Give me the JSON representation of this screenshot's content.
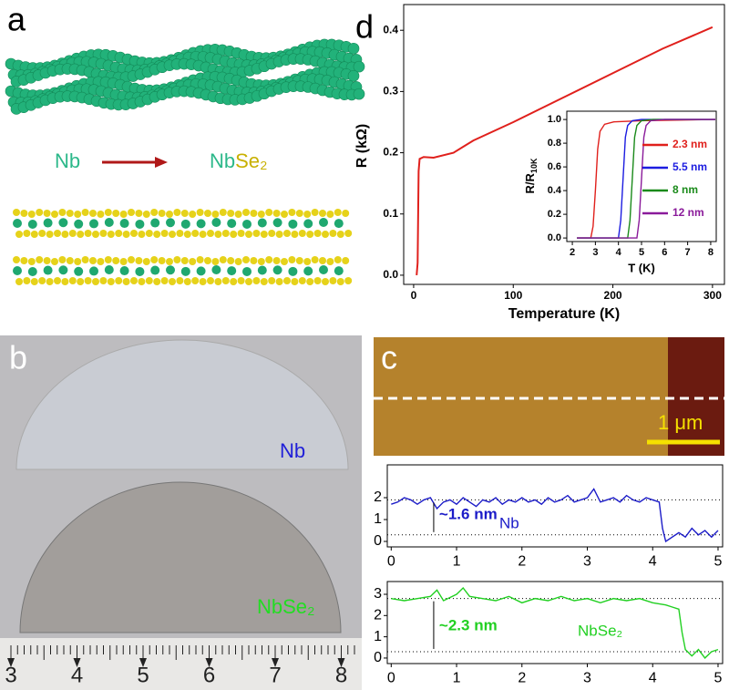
{
  "panel_labels": [
    "a",
    "b",
    "c",
    "d"
  ],
  "panel_a": {
    "from": "Nb",
    "to_metal": "Nb",
    "to_chalcogen": "Se₂"
  },
  "panel_b": {
    "label_top": "Nb",
    "label_bottom": "NbSe₂",
    "ruler": [
      "3",
      "4",
      "5",
      "6",
      "7",
      "8"
    ]
  },
  "panel_c": {
    "scale_bar": "1 μm"
  },
  "chart_data": [
    {
      "type": "line",
      "x_label": "Temperature (K)",
      "y_label": "R (kΩ)",
      "xlim": [
        -10,
        312
      ],
      "ylim": [
        -0.015,
        0.442
      ],
      "xticks": [
        0,
        100,
        200,
        300
      ],
      "yticks": [
        {
          "value": 0,
          "label": "0.0"
        },
        {
          "value": 0.1,
          "label": "0.1"
        },
        {
          "value": 0.2,
          "label": "0.2"
        },
        {
          "value": 0.3,
          "label": "0.3"
        },
        {
          "value": 0.4,
          "label": "0.4"
        }
      ],
      "series": [
        {
          "color": "#e0201c",
          "x": [
            3,
            4,
            5,
            6,
            10,
            20,
            40,
            60,
            100,
            150,
            200,
            250,
            300
          ],
          "values": [
            0,
            0.02,
            0.17,
            0.19,
            0.193,
            0.192,
            0.2,
            0.22,
            0.25,
            0.29,
            0.33,
            0.37,
            0.405
          ]
        }
      ]
    },
    {
      "type": "line",
      "x_label": "T (K)",
      "y_label": "R/R",
      "y_label_subscript": "10K",
      "xlim": [
        1.76,
        8.24
      ],
      "ylim": [
        -0.03,
        1.07
      ],
      "xticks": [
        2,
        3,
        4,
        5,
        6,
        7,
        8
      ],
      "yticks": [
        {
          "value": 0,
          "label": "0.0"
        },
        {
          "value": 0.2,
          "label": "0.2"
        },
        {
          "value": 0.4,
          "label": "0.4"
        },
        {
          "value": 0.6,
          "label": "0.6"
        },
        {
          "value": 0.8,
          "label": "0.8"
        },
        {
          "value": 1,
          "label": "1.0"
        }
      ],
      "series": [
        {
          "name": "2.3 nm",
          "color": "#e0201c",
          "x": [
            2.2,
            2.8,
            2.9,
            3.0,
            3.1,
            3.2,
            3.4,
            3.8,
            5,
            8.2
          ],
          "values": [
            0,
            0,
            0.1,
            0.4,
            0.75,
            0.9,
            0.96,
            0.98,
            0.99,
            1
          ]
        },
        {
          "name": "5.5 nm",
          "color": "#1c1ce0",
          "x": [
            2.2,
            4.0,
            4.1,
            4.2,
            4.3,
            4.4,
            4.6,
            5,
            8.2
          ],
          "values": [
            0,
            0,
            0.15,
            0.5,
            0.85,
            0.95,
            0.99,
            1,
            1
          ]
        },
        {
          "name": "8 nm",
          "color": "#1a8a1a",
          "x": [
            2.2,
            4.4,
            4.5,
            4.6,
            4.7,
            4.8,
            5.0,
            5.5,
            8.2
          ],
          "values": [
            0,
            0,
            0.15,
            0.5,
            0.85,
            0.95,
            0.99,
            1,
            1
          ]
        },
        {
          "name": "12 nm",
          "color": "#8a1a9a",
          "x": [
            2.2,
            4.8,
            4.9,
            5.0,
            5.1,
            5.2,
            5.4,
            6,
            8.2
          ],
          "values": [
            0,
            0,
            0.15,
            0.5,
            0.85,
            0.95,
            0.99,
            1,
            1
          ]
        }
      ]
    },
    {
      "type": "line",
      "annotation": "~1.6 nm",
      "xlim": [
        -0.06,
        5.07
      ],
      "ylim": [
        -0.25,
        3.5
      ],
      "xticks": [
        0,
        1,
        2,
        3,
        4,
        5
      ],
      "yticks": [
        0,
        1,
        2
      ],
      "hlines": [
        1.9,
        0.3
      ],
      "series": [
        {
          "name": "Nb",
          "color": "#1c1cc8",
          "x": [
            0,
            0.1,
            0.2,
            0.3,
            0.4,
            0.5,
            0.6,
            0.7,
            0.8,
            0.9,
            1.0,
            1.1,
            1.2,
            1.3,
            1.4,
            1.5,
            1.6,
            1.7,
            1.8,
            1.9,
            2.0,
            2.1,
            2.2,
            2.3,
            2.4,
            2.5,
            2.6,
            2.7,
            2.8,
            2.9,
            3.0,
            3.1,
            3.2,
            3.3,
            3.4,
            3.5,
            3.6,
            3.7,
            3.8,
            3.9,
            4.0,
            4.1,
            4.15,
            4.2,
            4.3,
            4.4,
            4.5,
            4.6,
            4.7,
            4.8,
            4.9,
            5.0
          ],
          "values": [
            1.7,
            1.8,
            2.0,
            1.9,
            1.7,
            1.9,
            2.0,
            1.5,
            1.8,
            1.9,
            1.7,
            2.0,
            1.8,
            1.6,
            1.9,
            1.8,
            2.0,
            1.7,
            1.9,
            1.8,
            2.0,
            1.8,
            1.9,
            1.7,
            2.0,
            1.8,
            1.9,
            2.1,
            1.8,
            1.9,
            2.0,
            2.4,
            1.8,
            1.9,
            2.0,
            1.8,
            2.1,
            1.9,
            1.8,
            2.0,
            1.9,
            1.8,
            0.6,
            0.0,
            0.2,
            0.4,
            0.2,
            0.6,
            0.3,
            0.5,
            0.2,
            0.5
          ]
        }
      ]
    },
    {
      "type": "line",
      "annotation": "~2.3 nm",
      "xlim": [
        -0.06,
        5.07
      ],
      "ylim": [
        -0.26,
        3.6
      ],
      "xticks": [
        0,
        1,
        2,
        3,
        4,
        5
      ],
      "yticks": [
        0,
        1,
        2,
        3
      ],
      "hlines": [
        2.8,
        0.3
      ],
      "series": [
        {
          "name": "NbSe₂",
          "color": "#22d022",
          "x": [
            0,
            0.2,
            0.4,
            0.6,
            0.7,
            0.8,
            1.0,
            1.1,
            1.2,
            1.4,
            1.6,
            1.8,
            2.0,
            2.2,
            2.4,
            2.6,
            2.8,
            3.0,
            3.2,
            3.4,
            3.6,
            3.8,
            4.0,
            4.2,
            4.3,
            4.4,
            4.45,
            4.5,
            4.6,
            4.7,
            4.8,
            4.9,
            5.0
          ],
          "values": [
            2.8,
            2.7,
            2.8,
            2.9,
            3.2,
            2.7,
            3.0,
            3.3,
            2.9,
            2.8,
            2.7,
            2.9,
            2.6,
            2.8,
            2.7,
            2.9,
            2.7,
            2.8,
            2.6,
            2.8,
            2.7,
            2.8,
            2.6,
            2.5,
            2.4,
            2.3,
            1.2,
            0.4,
            0.1,
            0.4,
            0.0,
            0.3,
            0.4
          ]
        }
      ]
    }
  ]
}
